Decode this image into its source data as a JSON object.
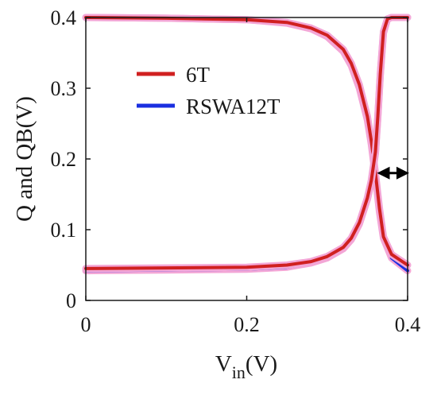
{
  "chart_data": {
    "type": "line",
    "title": "",
    "xlabel_main": "V",
    "xlabel_sub": "in",
    "xlabel_unit": "(V)",
    "ylabel": "Q and QB(V)",
    "xlim": [
      0,
      0.4
    ],
    "ylim": [
      0,
      0.4
    ],
    "x_ticks": [
      "0",
      "0.2",
      "0.4"
    ],
    "y_ticks": [
      "0",
      "0.1",
      "0.2",
      "0.3",
      "0.4"
    ],
    "grid": false,
    "legend_position": "upper-center",
    "colors": {
      "6T": "#d02020",
      "RSWA12T": "#1a2fe0",
      "halo": "#f3a6d6"
    },
    "series": [
      {
        "name": "6T",
        "curves": [
          {
            "x": [
              0,
              0.1,
              0.2,
              0.25,
              0.28,
              0.3,
              0.32,
              0.33,
              0.34,
              0.35,
              0.355,
              0.36,
              0.365,
              0.37,
              0.38,
              0.4
            ],
            "y": [
              0.4,
              0.399,
              0.397,
              0.393,
              0.385,
              0.375,
              0.355,
              0.335,
              0.305,
              0.26,
              0.225,
              0.18,
              0.13,
              0.09,
              0.065,
              0.05
            ]
          },
          {
            "x": [
              0,
              0.1,
              0.2,
              0.25,
              0.28,
              0.3,
              0.32,
              0.33,
              0.34,
              0.35,
              0.355,
              0.36,
              0.363,
              0.366,
              0.37,
              0.375,
              0.38,
              0.4
            ],
            "y": [
              0.045,
              0.046,
              0.047,
              0.05,
              0.055,
              0.062,
              0.075,
              0.088,
              0.11,
              0.145,
              0.17,
              0.21,
              0.26,
              0.32,
              0.38,
              0.398,
              0.4,
              0.4
            ]
          }
        ]
      },
      {
        "name": "RSWA12T",
        "curves": [
          {
            "x": [
              0,
              0.1,
              0.2,
              0.25,
              0.28,
              0.3,
              0.32,
              0.33,
              0.34,
              0.35,
              0.355,
              0.36,
              0.365,
              0.37,
              0.38,
              0.4
            ],
            "y": [
              0.4,
              0.399,
              0.397,
              0.392,
              0.384,
              0.373,
              0.352,
              0.332,
              0.3,
              0.255,
              0.22,
              0.175,
              0.125,
              0.088,
              0.06,
              0.042
            ]
          },
          {
            "x": [
              0,
              0.1,
              0.2,
              0.25,
              0.28,
              0.3,
              0.32,
              0.33,
              0.34,
              0.35,
              0.355,
              0.36,
              0.363,
              0.366,
              0.37,
              0.375,
              0.38,
              0.4
            ],
            "y": [
              0.042,
              0.043,
              0.044,
              0.047,
              0.053,
              0.06,
              0.073,
              0.086,
              0.108,
              0.143,
              0.168,
              0.208,
              0.258,
              0.318,
              0.378,
              0.398,
              0.4,
              0.4
            ]
          }
        ]
      }
    ],
    "annotation": {
      "type": "double-arrow",
      "x_from": 0.36,
      "x_to": 0.4,
      "y": 0.18
    }
  }
}
